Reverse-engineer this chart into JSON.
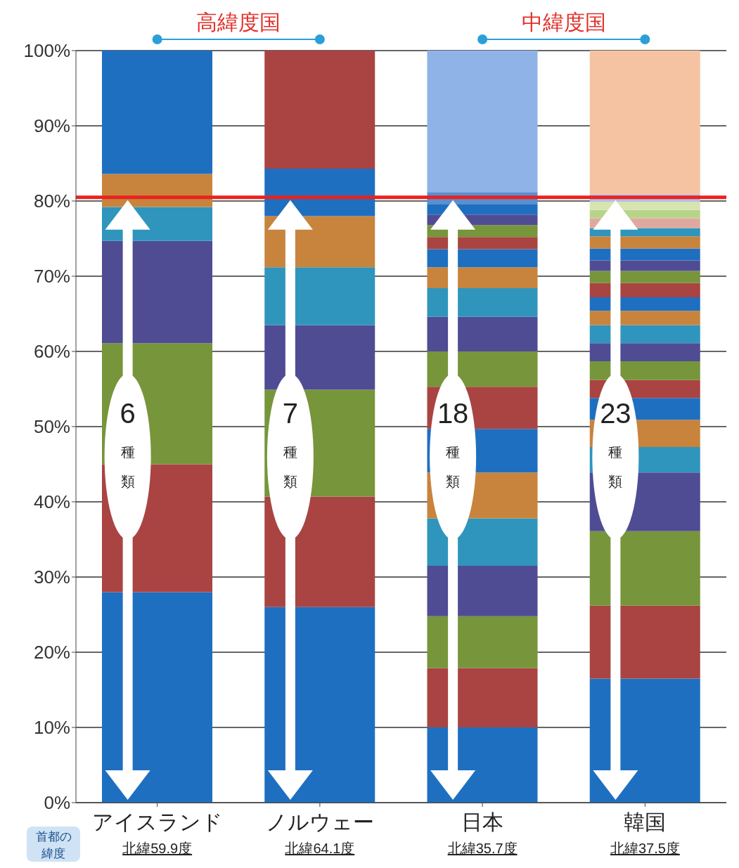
{
  "chart_data": {
    "type": "bar",
    "stacked": true,
    "categories": [
      "アイスランド",
      "ノルウェー",
      "日本",
      "韓国"
    ],
    "ylim": [
      0,
      100
    ],
    "yticks": [
      {
        "value": 0,
        "label": "0%"
      },
      {
        "value": 10,
        "label": "10%"
      },
      {
        "value": 20,
        "label": "20%"
      },
      {
        "value": 30,
        "label": "30%"
      },
      {
        "value": 40,
        "label": "40%"
      },
      {
        "value": 50,
        "label": "50%"
      },
      {
        "value": 60,
        "label": "60%"
      },
      {
        "value": 70,
        "label": "70%"
      },
      {
        "value": 80,
        "label": "80%"
      },
      {
        "value": 90,
        "label": "90%"
      },
      {
        "value": 100,
        "label": "100%"
      }
    ],
    "grid": "y",
    "legend": false,
    "ref_lines": [
      {
        "axis": "y",
        "value": 80.5,
        "color": "#e8231f"
      }
    ],
    "annotations": [
      "高緯度国",
      "中緯度国",
      "6種類",
      "7種類",
      "18種類",
      "23種類",
      "首都の緯度",
      "北緯59.9度",
      "北緯64.1度",
      "北緯35.7度",
      "北緯37.5度"
    ],
    "series": [
      {
        "values": [
          28,
          26,
          10,
          16.5
        ],
        "colors": [
          "#1f6fc0",
          "#1f6fc0",
          "#1f6fc0",
          "#1f6fc0"
        ]
      },
      {
        "values": [
          17,
          14.7,
          7.9,
          9.7
        ],
        "colors": [
          "#a94442",
          "#a94442",
          "#a94442",
          "#a94442"
        ]
      },
      {
        "values": [
          16.1,
          14.2,
          6.9,
          9.9
        ],
        "colors": [
          "#77953a",
          "#77953a",
          "#77953a",
          "#77953a"
        ]
      },
      {
        "values": [
          13.6,
          8.6,
          6.7,
          7.8
        ],
        "colors": [
          "#4f4c94",
          "#4f4c94",
          "#4f4c94",
          "#4f4c94"
        ]
      },
      {
        "values": [
          4.5,
          7.7,
          6.3,
          3.4
        ],
        "colors": [
          "#2f95bd",
          "#2f95bd",
          "#2f95bd",
          "#2f95bd"
        ]
      },
      {
        "values": [
          4.4,
          6.8,
          6.1,
          3.6
        ],
        "colors": [
          "#c8843c",
          "#c8843c",
          "#c8843c",
          "#c8843c"
        ]
      },
      {
        "values": [
          16.4,
          6.3,
          5.8,
          2.9
        ],
        "colors": [
          "#1f6fc0",
          "#1f6fc0",
          "#1f6fc0",
          "#1f6fc0"
        ]
      },
      {
        "values": [
          null,
          15.7,
          5.6,
          2.4
        ],
        "colors": [
          null,
          "#a94442",
          "#a94442",
          "#a94442"
        ]
      },
      {
        "values": [
          null,
          null,
          4.7,
          2.5
        ],
        "colors": [
          null,
          null,
          "#77953a",
          "#77953a"
        ]
      },
      {
        "values": [
          null,
          null,
          4.6,
          2.4
        ],
        "colors": [
          null,
          null,
          "#4f4c94",
          "#4f4c94"
        ]
      },
      {
        "values": [
          null,
          null,
          3.8,
          2.4
        ],
        "colors": [
          null,
          null,
          "#2f95bd",
          "#2f95bd"
        ]
      },
      {
        "values": [
          null,
          null,
          2.8,
          1.9
        ],
        "colors": [
          null,
          null,
          "#c8843c",
          "#c8843c"
        ]
      },
      {
        "values": [
          null,
          null,
          2.4,
          1.8
        ],
        "colors": [
          null,
          null,
          "#1f6fc0",
          "#1f6fc0"
        ]
      },
      {
        "values": [
          null,
          null,
          1.6,
          1.9
        ],
        "colors": [
          null,
          null,
          "#a94442",
          "#a94442"
        ]
      },
      {
        "values": [
          null,
          null,
          1.6,
          1.6
        ],
        "colors": [
          null,
          null,
          "#77953a",
          "#77953a"
        ]
      },
      {
        "values": [
          null,
          null,
          1.4,
          1.4
        ],
        "colors": [
          null,
          null,
          "#4f4c94",
          "#4f4c94"
        ]
      },
      {
        "values": [
          null,
          null,
          1.4,
          1.6
        ],
        "colors": [
          null,
          null,
          "#1f6fc0",
          "#1f6fc0"
        ]
      },
      {
        "values": [
          null,
          null,
          1.6,
          1.6
        ],
        "colors": [
          null,
          null,
          "#5a8fd0",
          "#c8843c"
        ]
      },
      {
        "values": [
          null,
          null,
          18.8,
          1.1
        ],
        "colors": [
          null,
          null,
          "#8fb3e6",
          "#2f95bd"
        ]
      },
      {
        "values": [
          null,
          null,
          null,
          1.3
        ],
        "colors": [
          null,
          null,
          null,
          "#e0a9a0"
        ]
      },
      {
        "values": [
          null,
          null,
          null,
          1.1
        ],
        "colors": [
          null,
          null,
          null,
          "#b8d48a"
        ]
      },
      {
        "values": [
          null,
          null,
          null,
          1.1
        ],
        "colors": [
          null,
          null,
          null,
          "#d6e4b0"
        ]
      },
      {
        "values": [
          null,
          null,
          null,
          1.0
        ],
        "colors": [
          null,
          null,
          null,
          "#b6bde6"
        ]
      },
      {
        "values": [
          null,
          null,
          null,
          19.1
        ],
        "colors": [
          null,
          null,
          null,
          "#f6c3a2"
        ]
      }
    ]
  }
}
